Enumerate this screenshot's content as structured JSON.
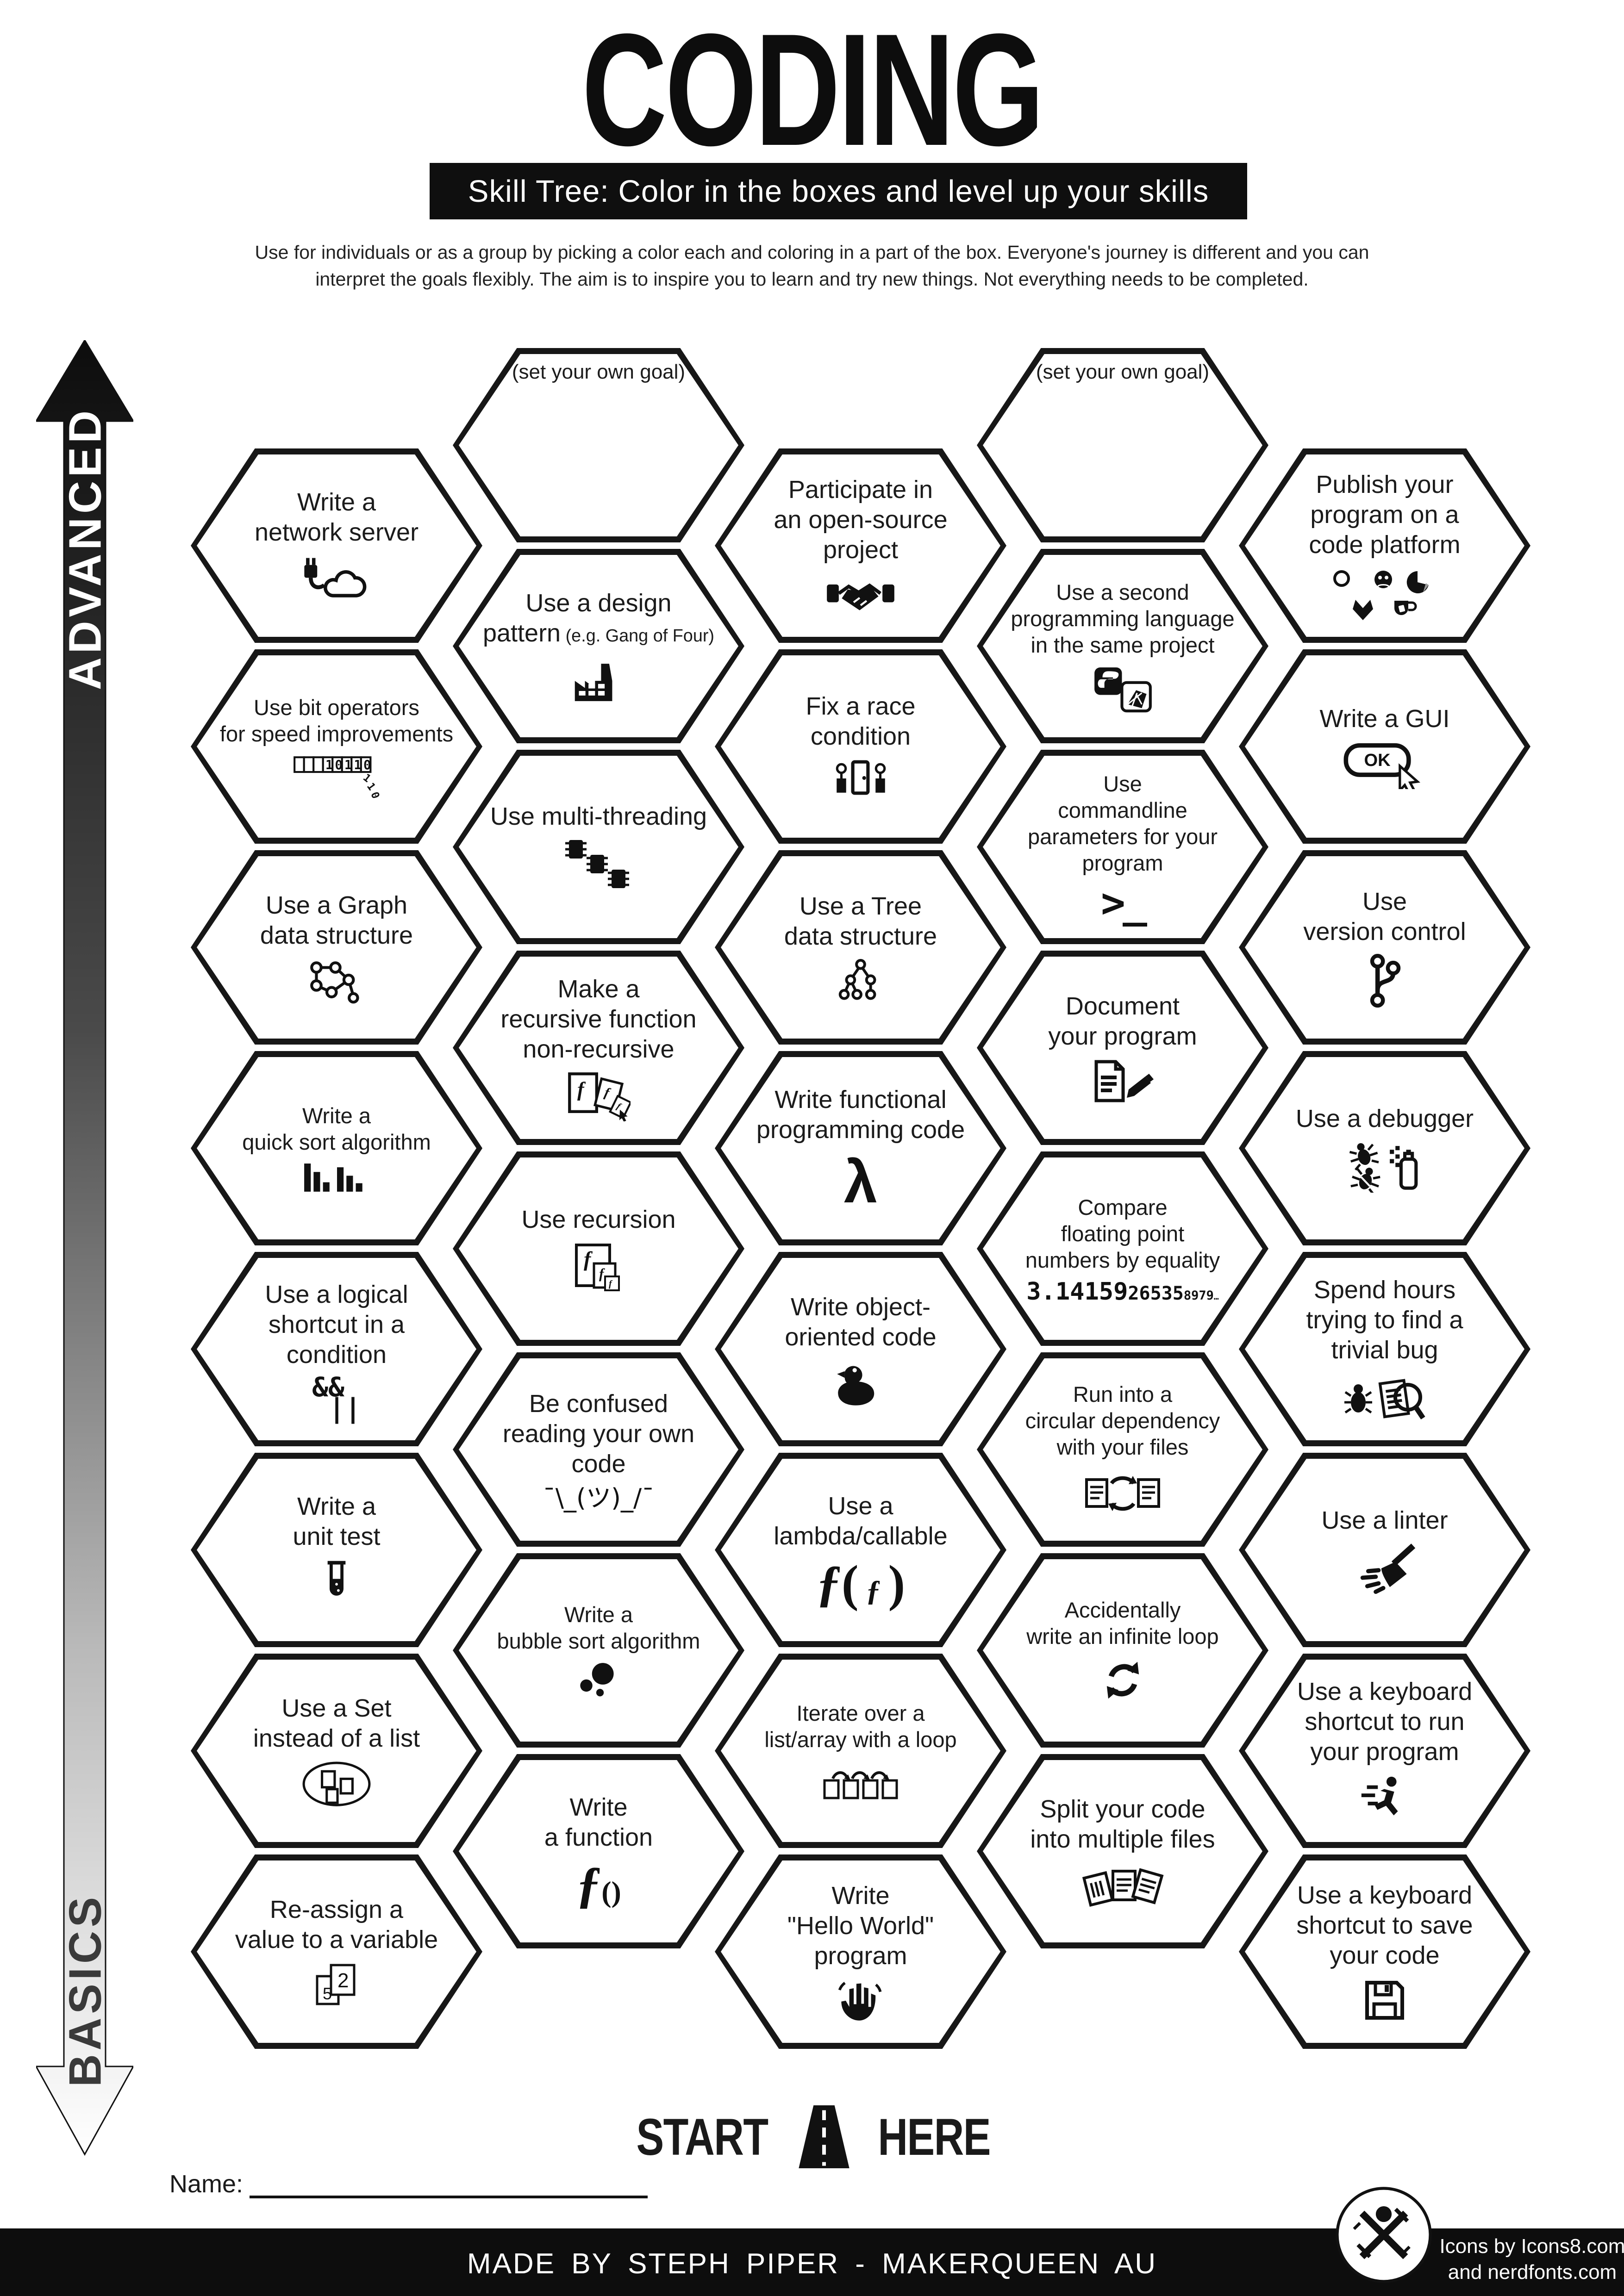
{
  "title": "CODING",
  "subtitle": "Skill Tree:  Color in the boxes and level up your skills",
  "description": {
    "line1": "Use for individuals or as a group by picking a color each and coloring in a part of the box.  Everyone's journey is different and you can",
    "line2": "interpret the goals flexibly.  The aim is to inspire you to learn and try new things. Not everything needs to be completed."
  },
  "axis": {
    "top": "ADVANCED",
    "bottom": "BASICS"
  },
  "start": {
    "word1": "START",
    "word2": "HERE"
  },
  "name_label": "Name:",
  "footer": {
    "made_by": "MADE BY STEPH PIPER - MAKERQUEEN AU",
    "credits_line1": "Icons by Icons8.com",
    "credits_line2": "and nerdfonts.com"
  },
  "colors": {
    "ink": "#1a1a1a",
    "paper": "#ffffff"
  },
  "hexes": [
    {
      "id": "goal-left",
      "col": 2,
      "row": 0,
      "type": "goal",
      "label": "(set your own goal)"
    },
    {
      "id": "goal-right",
      "col": 4,
      "row": 0,
      "type": "goal",
      "label": "(set your own goal)"
    },
    {
      "id": "network-server",
      "col": 1,
      "row": 0,
      "lines": [
        "Write a",
        "network server"
      ],
      "icon": "cable-cloud-icon"
    },
    {
      "id": "open-source",
      "col": 3,
      "row": 0,
      "lines": [
        "Participate in",
        "an open-source",
        "project"
      ],
      "icon": "handshake-icon"
    },
    {
      "id": "publish-platform",
      "col": 5,
      "row": 0,
      "lines": [
        "Publish your",
        "program on a",
        "code platform"
      ],
      "icon": "code-platforms-icon"
    },
    {
      "id": "design-pattern",
      "col": 2,
      "row": 1,
      "lines": [
        "Use a design",
        "pattern"
      ],
      "note": "(e.g. Gang of Four)",
      "icon": "factory-icon"
    },
    {
      "id": "second-language",
      "col": 4,
      "row": 1,
      "size": "small",
      "lines": [
        "Use a second",
        "programming language",
        "in the same project"
      ],
      "icon": "python-ruby-icon"
    },
    {
      "id": "bit-operators",
      "col": 1,
      "row": 1,
      "size": "small",
      "lines": [
        "Use bit operators",
        "for speed improvements"
      ],
      "icon": "binary-bits-icon",
      "icon_text": "10110 110"
    },
    {
      "id": "race-condition",
      "col": 3,
      "row": 1,
      "lines": [
        "Fix a race",
        "condition"
      ],
      "icon": "race-door-icon"
    },
    {
      "id": "write-gui",
      "col": 5,
      "row": 1,
      "lines": [
        "Write a GUI"
      ],
      "icon": "ok-button-cursor-icon",
      "icon_text": "OK"
    },
    {
      "id": "multi-threading",
      "col": 2,
      "row": 2,
      "lines": [
        "Use multi-threading"
      ],
      "icon": "chips-icon"
    },
    {
      "id": "commandline-params",
      "col": 4,
      "row": 2,
      "size": "small",
      "lines": [
        "Use",
        "commandline",
        "parameters for your",
        "program"
      ],
      "icon": "terminal-icon",
      "icon_text": ">_"
    },
    {
      "id": "graph-structure",
      "col": 1,
      "row": 2,
      "lines": [
        "Use a Graph",
        "data structure"
      ],
      "icon": "graph-nodes-icon"
    },
    {
      "id": "tree-structure",
      "col": 3,
      "row": 2,
      "lines": [
        "Use a Tree",
        "data structure"
      ],
      "icon": "tree-nodes-icon"
    },
    {
      "id": "version-control",
      "col": 5,
      "row": 2,
      "lines": [
        "Use",
        "version control"
      ],
      "icon": "git-branch-icon"
    },
    {
      "id": "non-recursive",
      "col": 2,
      "row": 3,
      "lines": [
        "Make a",
        "recursive function",
        "non-recursive"
      ],
      "icon": "f-pages-icon"
    },
    {
      "id": "document-program",
      "col": 4,
      "row": 3,
      "lines": [
        "Document",
        "your program"
      ],
      "icon": "doc-marker-icon"
    },
    {
      "id": "quick-sort",
      "col": 1,
      "row": 3,
      "size": "small",
      "lines": [
        "Write a",
        "quick sort algorithm"
      ],
      "icon": "sort-bars-icon"
    },
    {
      "id": "functional-code",
      "col": 3,
      "row": 3,
      "lines": [
        "Write functional",
        "programming code"
      ],
      "icon": "lambda-icon",
      "icon_text": "λ"
    },
    {
      "id": "use-debugger",
      "col": 5,
      "row": 3,
      "lines": [
        "Use a debugger"
      ],
      "icon": "bug-spray-icon"
    },
    {
      "id": "use-recursion",
      "col": 2,
      "row": 4,
      "lines": [
        "Use recursion"
      ],
      "icon": "nested-f-icon"
    },
    {
      "id": "float-equality",
      "col": 4,
      "row": 4,
      "size": "small",
      "lines": [
        "Compare",
        "floating point",
        "numbers by equality"
      ],
      "icon": "pi-digits-icon",
      "icon_text": "3.14159265358979…"
    },
    {
      "id": "logical-shortcut",
      "col": 1,
      "row": 4,
      "lines": [
        "Use a logical",
        "shortcut in a",
        "condition"
      ],
      "icon": "logical-ops-icon",
      "icon_text": "&& ||"
    },
    {
      "id": "object-oriented",
      "col": 3,
      "row": 4,
      "lines": [
        "Write object-",
        "oriented code"
      ],
      "icon": "rubber-duck-icon"
    },
    {
      "id": "trivial-bug",
      "col": 5,
      "row": 4,
      "lines": [
        "Spend hours",
        "trying to find a",
        "trivial bug"
      ],
      "icon": "bug-magnifier-icon"
    },
    {
      "id": "confused-code",
      "col": 2,
      "row": 5,
      "lines": [
        "Be confused",
        "reading your own",
        "code"
      ],
      "icon": "shrug-icon",
      "icon_text": "¯\\_(ツ)_/¯"
    },
    {
      "id": "circular-dependency",
      "col": 4,
      "row": 5,
      "size": "small",
      "lines": [
        "Run into a",
        "circular dependency",
        "with your files"
      ],
      "icon": "docs-cycle-icon"
    },
    {
      "id": "unit-test",
      "col": 1,
      "row": 5,
      "lines": [
        "Write a",
        "unit test"
      ],
      "icon": "test-tube-icon"
    },
    {
      "id": "lambda-callable",
      "col": 3,
      "row": 5,
      "lines": [
        "Use a",
        "lambda/callable"
      ],
      "icon": "lambda-call-icon",
      "icon_text": "ƒ( ƒ )"
    },
    {
      "id": "use-linter",
      "col": 5,
      "row": 5,
      "lines": [
        "Use a linter"
      ],
      "icon": "broom-icon"
    },
    {
      "id": "bubble-sort",
      "col": 2,
      "row": 6,
      "size": "small",
      "lines": [
        "Write a",
        "bubble sort algorithm"
      ],
      "icon": "bubbles-icon"
    },
    {
      "id": "infinite-loop",
      "col": 4,
      "row": 6,
      "size": "small",
      "lines": [
        "Accidentally",
        "write an infinite loop"
      ],
      "icon": "loop-arrows-icon"
    },
    {
      "id": "use-set",
      "col": 1,
      "row": 6,
      "lines": [
        "Use a Set",
        "instead of a list"
      ],
      "icon": "set-ellipse-icon"
    },
    {
      "id": "iterate-loop",
      "col": 3,
      "row": 6,
      "size": "small",
      "lines": [
        "Iterate over a",
        "list/array with a loop"
      ],
      "icon": "array-loop-icon"
    },
    {
      "id": "shortcut-run",
      "col": 5,
      "row": 6,
      "lines": [
        "Use a keyboard",
        "shortcut to run",
        "your program"
      ],
      "icon": "runner-icon"
    },
    {
      "id": "write-function",
      "col": 2,
      "row": 7,
      "lines": [
        "Write",
        "a function"
      ],
      "icon": "f-parens-icon",
      "icon_text": "ƒ()"
    },
    {
      "id": "split-files",
      "col": 4,
      "row": 7,
      "lines": [
        "Split your code",
        "into multiple files"
      ],
      "icon": "docs-split-icon"
    },
    {
      "id": "reassign-variable",
      "col": 1,
      "row": 7,
      "lines": [
        "Re-assign a",
        "value to a variable"
      ],
      "icon": "value-cards-icon",
      "icon_text": "5 2"
    },
    {
      "id": "hello-world",
      "col": 3,
      "row": 7,
      "lines": [
        "Write",
        "\"Hello World\"",
        "program"
      ],
      "icon": "wave-hand-icon"
    },
    {
      "id": "shortcut-save",
      "col": 5,
      "row": 7,
      "lines": [
        "Use a keyboard",
        "shortcut to save",
        "your code"
      ],
      "icon": "floppy-disk-icon"
    }
  ]
}
